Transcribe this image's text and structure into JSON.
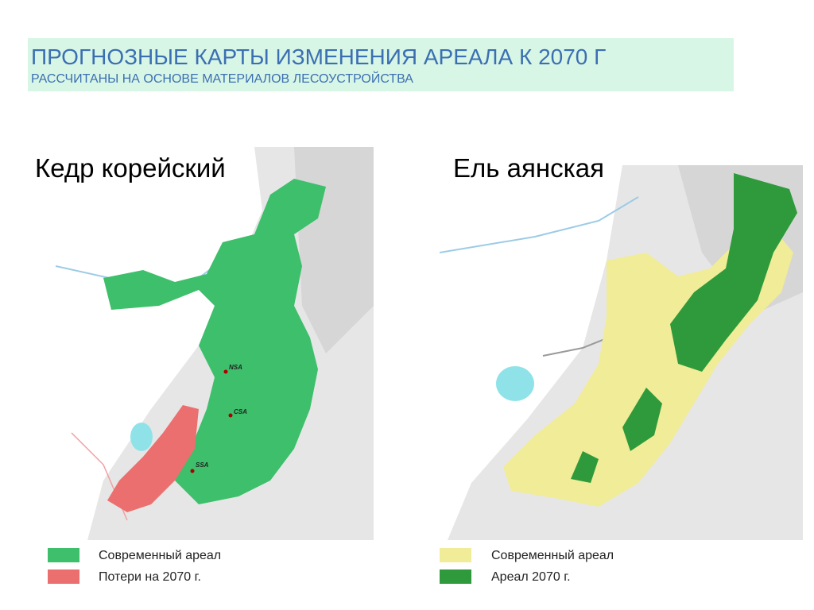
{
  "header": {
    "title": "ПРОГНОЗНЫЕ КАРТЫ ИЗМЕНЕНИЯ АРЕАЛА К 2070 Г",
    "subtitle": "РАССЧИТАНЫ НА ОСНОВЕ МАТЕРИАЛОВ ЛЕСОУСТРОЙСТВА"
  },
  "panels": [
    {
      "title": "Кедр корейский",
      "map_labels": [
        "NSA",
        "CSA",
        "SSA"
      ],
      "legend": [
        {
          "label": "Современный ареал",
          "color": "#3dbf6b"
        },
        {
          "label": "Потери на 2070 г.",
          "color": "#ec6f6f"
        }
      ]
    },
    {
      "title": "Ель аянская",
      "legend": [
        {
          "label": "Современный ареал",
          "color": "#f1ec97"
        },
        {
          "label": "Ареал 2070 г.",
          "color": "#2f9a3b"
        }
      ]
    }
  ]
}
